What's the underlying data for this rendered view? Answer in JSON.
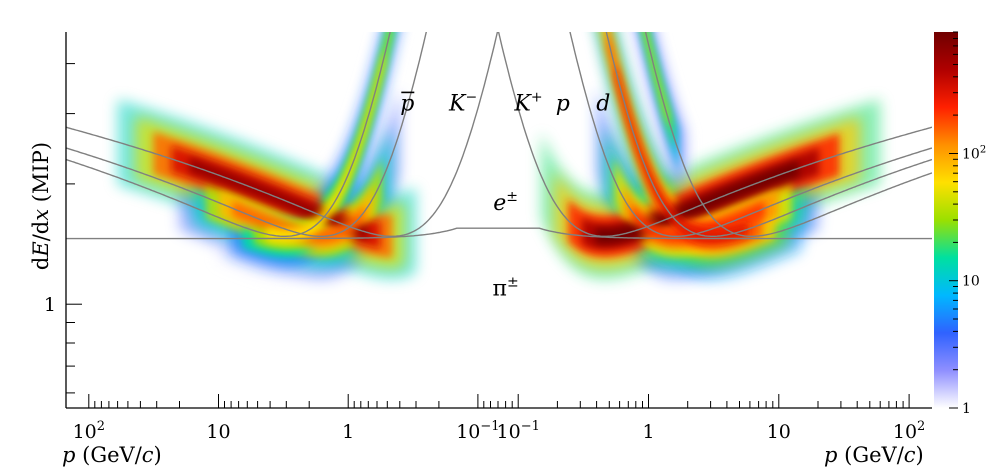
{
  "chart_data": {
    "type": "heatmap",
    "title": "",
    "ylabel": "dE/dx (MIP)",
    "ylabel_italic": "E",
    "ylabel_pre": "d",
    "ylabel_mid": "/d",
    "ylabel_var": "x",
    "ylabel_post": " (MIP)",
    "xlabel_left": "p (GeV/c)",
    "xlabel_right": "p (GeV/c)",
    "x_scale": "log, mirrored: left half negative-charge momentum decreasing rightward, right half positive-charge momentum increasing rightward",
    "y_scale": "log",
    "ylim": [
      0.55,
      4.8
    ],
    "xlim_left": [
      150,
      0.07
    ],
    "xlim_right": [
      0.07,
      150
    ],
    "x_ticks_left": [
      {
        "value": 100,
        "label": "10",
        "sup": "2"
      },
      {
        "value": 10,
        "label": "10",
        "sup": ""
      },
      {
        "value": 1,
        "label": "1",
        "sup": ""
      },
      {
        "value": 0.1,
        "label": "10",
        "sup": "−1"
      }
    ],
    "x_ticks_right": [
      {
        "value": 0.1,
        "label": "10",
        "sup": "−1"
      },
      {
        "value": 1,
        "label": "1",
        "sup": ""
      },
      {
        "value": 10,
        "label": "10",
        "sup": ""
      },
      {
        "value": 100,
        "label": "10",
        "sup": "2"
      }
    ],
    "y_ticks": [
      {
        "value": 1,
        "label": "1"
      }
    ],
    "colorbar": {
      "scale": "log",
      "range": [
        1,
        900
      ],
      "ticks": [
        {
          "value": 1,
          "label": "1",
          "sup": ""
        },
        {
          "value": 10,
          "label": "10",
          "sup": ""
        },
        {
          "value": 100,
          "label": "10",
          "sup": "2"
        }
      ],
      "colors": [
        "#ffffff",
        "#8f8fff",
        "#2f62ff",
        "#00b8ff",
        "#00e0a0",
        "#9be000",
        "#ffe000",
        "#ff9000",
        "#ff2000",
        "#b00000",
        "#700000"
      ]
    },
    "particle_labels": [
      {
        "text": "p",
        "overline": true,
        "side": "left",
        "x": 0.35,
        "y": 3.2
      },
      {
        "text": "K",
        "sup": "−",
        "side": "left",
        "x": 0.13,
        "y": 3.2
      },
      {
        "text": "K",
        "sup": "+",
        "side": "right",
        "x": 0.12,
        "y": 3.2
      },
      {
        "text": "p",
        "side": "right",
        "x": 0.22,
        "y": 3.2
      },
      {
        "text": "d",
        "side": "right",
        "x": 0.45,
        "y": 3.2
      },
      {
        "text": "e",
        "sup": "±",
        "side": "right",
        "x": 0.08,
        "y": 1.8
      },
      {
        "text": "π",
        "sup": "±",
        "side": "right",
        "x": 0.08,
        "y": 1.1
      }
    ],
    "expected_curves": [
      {
        "particle": "pi",
        "mass": 0.1396
      },
      {
        "particle": "K",
        "mass": 0.4937
      },
      {
        "particle": "p",
        "mass": 0.9383
      },
      {
        "particle": "d",
        "mass": 1.8756
      },
      {
        "particle": "e",
        "mass": 0.000511
      }
    ],
    "density_bands": [
      {
        "name": "pi-minus",
        "side": "left",
        "p_range": [
          0.3,
          60
        ],
        "peak": 600
      },
      {
        "name": "K-minus",
        "side": "left",
        "p_range": [
          0.4,
          20
        ],
        "peak": 150
      },
      {
        "name": "pbar",
        "side": "left",
        "p_range": [
          0.3,
          10
        ],
        "peak": 60
      },
      {
        "name": "pi-plus",
        "side": "right",
        "p_range": [
          0.15,
          60
        ],
        "peak": 900
      },
      {
        "name": "K-plus",
        "side": "right",
        "p_range": [
          0.4,
          20
        ],
        "peak": 200
      },
      {
        "name": "p",
        "side": "right",
        "p_range": [
          0.3,
          15
        ],
        "peak": 300
      },
      {
        "name": "d",
        "side": "right",
        "p_range": [
          0.5,
          2
        ],
        "peak": 40
      }
    ]
  }
}
